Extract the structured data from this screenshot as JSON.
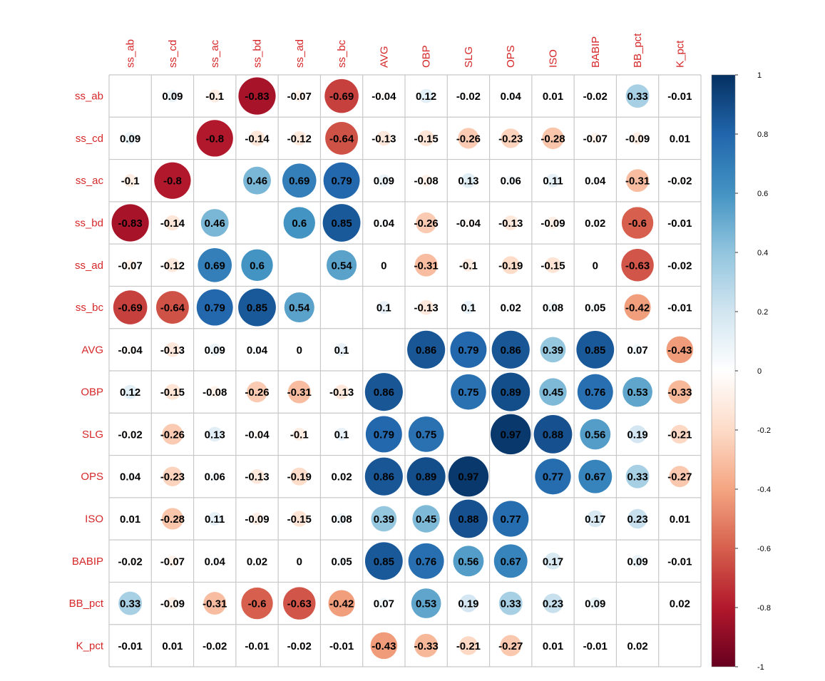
{
  "chart_data": {
    "type": "heatmap",
    "variables": [
      "ss_ab",
      "ss_cd",
      "ss_ac",
      "ss_bd",
      "ss_ad",
      "ss_bc",
      "AVG",
      "OBP",
      "SLG",
      "OPS",
      "ISO",
      "BABIP",
      "BB_pct",
      "K_pct"
    ],
    "matrix": [
      [
        null,
        0.09,
        -0.1,
        -0.83,
        -0.07,
        -0.69,
        -0.04,
        0.12,
        -0.02,
        0.04,
        0.01,
        -0.02,
        0.33,
        -0.01
      ],
      [
        0.09,
        null,
        -0.8,
        -0.14,
        -0.12,
        -0.64,
        -0.13,
        -0.15,
        -0.26,
        -0.23,
        -0.28,
        -0.07,
        -0.09,
        0.01
      ],
      [
        -0.1,
        -0.8,
        null,
        0.46,
        0.69,
        0.79,
        0.09,
        -0.08,
        0.13,
        0.06,
        0.11,
        0.04,
        -0.31,
        -0.02
      ],
      [
        -0.83,
        -0.14,
        0.46,
        null,
        0.6,
        0.85,
        0.04,
        -0.26,
        -0.04,
        -0.13,
        -0.09,
        0.02,
        -0.6,
        -0.01
      ],
      [
        -0.07,
        -0.12,
        0.69,
        0.6,
        null,
        0.54,
        0,
        -0.31,
        -0.1,
        -0.19,
        -0.15,
        0,
        -0.63,
        -0.02
      ],
      [
        -0.69,
        -0.64,
        0.79,
        0.85,
        0.54,
        null,
        0.1,
        -0.13,
        0.1,
        0.02,
        0.08,
        0.05,
        -0.42,
        -0.01
      ],
      [
        -0.04,
        -0.13,
        0.09,
        0.04,
        0,
        0.1,
        null,
        0.86,
        0.79,
        0.86,
        0.39,
        0.85,
        0.07,
        -0.43
      ],
      [
        0.12,
        -0.15,
        -0.08,
        -0.26,
        -0.31,
        -0.13,
        0.86,
        null,
        0.75,
        0.89,
        0.45,
        0.76,
        0.53,
        -0.33
      ],
      [
        -0.02,
        -0.26,
        0.13,
        -0.04,
        -0.1,
        0.1,
        0.79,
        0.75,
        null,
        0.97,
        0.88,
        0.56,
        0.19,
        -0.21
      ],
      [
        0.04,
        -0.23,
        0.06,
        -0.13,
        -0.19,
        0.02,
        0.86,
        0.89,
        0.97,
        null,
        0.77,
        0.67,
        0.33,
        -0.27
      ],
      [
        0.01,
        -0.28,
        0.11,
        -0.09,
        -0.15,
        0.08,
        0.39,
        0.45,
        0.88,
        0.77,
        null,
        0.17,
        0.23,
        0.01
      ],
      [
        -0.02,
        -0.07,
        0.04,
        0.02,
        0,
        0.05,
        0.85,
        0.76,
        0.56,
        0.67,
        0.17,
        null,
        0.09,
        -0.01
      ],
      [
        0.33,
        -0.09,
        -0.31,
        -0.6,
        -0.63,
        -0.42,
        0.07,
        0.53,
        0.19,
        0.33,
        0.23,
        0.09,
        null,
        0.02
      ],
      [
        -0.01,
        0.01,
        -0.02,
        -0.01,
        -0.02,
        -0.01,
        -0.43,
        -0.33,
        -0.21,
        -0.27,
        0.01,
        -0.01,
        0.02,
        null
      ]
    ],
    "color_scale": {
      "range": [
        -1,
        1
      ],
      "ticks": [
        "1",
        "0.8",
        "0.6",
        "0.4",
        "0.2",
        "0",
        "-0.2",
        "-0.4",
        "-0.6",
        "-0.8",
        "-1"
      ],
      "stops": [
        {
          "v": -1.0,
          "color": "#67001f"
        },
        {
          "v": -0.8,
          "color": "#b2182b"
        },
        {
          "v": -0.6,
          "color": "#d6604d"
        },
        {
          "v": -0.4,
          "color": "#f4a582"
        },
        {
          "v": -0.2,
          "color": "#fddbc7"
        },
        {
          "v": 0.0,
          "color": "#ffffff"
        },
        {
          "v": 0.2,
          "color": "#d1e5f0"
        },
        {
          "v": 0.4,
          "color": "#92c5de"
        },
        {
          "v": 0.6,
          "color": "#4393c3"
        },
        {
          "v": 0.8,
          "color": "#2166ac"
        },
        {
          "v": 1.0,
          "color": "#053061"
        }
      ]
    },
    "marker": "circle",
    "value_labels": true,
    "label_color": "#d62728",
    "grid": true,
    "legend": "right"
  }
}
